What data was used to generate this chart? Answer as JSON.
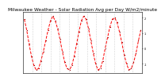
{
  "title": "Milwaukee Weather - Solar Radiation Avg per Day W/m2/minute",
  "title_fontsize": 4.2,
  "line_color": "#ff0000",
  "line_style": "--",
  "line_width": 0.7,
  "marker": "s",
  "marker_size": 0.6,
  "marker_color": "#880000",
  "background_color": "#ffffff",
  "grid_color": "#999999",
  "ylim": [
    -1.6,
    2.4
  ],
  "tick_fontsize": 2.5,
  "y_values": [
    1.9,
    1.2,
    0.3,
    -0.5,
    -1.1,
    -1.4,
    -1.3,
    -0.8,
    -0.2,
    0.5,
    1.2,
    1.8,
    2.1,
    1.8,
    1.3,
    0.6,
    -0.2,
    -0.9,
    -1.3,
    -1.4,
    -1.1,
    -0.5,
    0.3,
    1.1,
    1.8,
    2.1,
    1.9,
    1.3,
    0.5,
    -0.3,
    -1.0,
    -1.4,
    -1.3,
    -0.8,
    0.0,
    0.7,
    1.4,
    1.9,
    2.0,
    1.7,
    1.1,
    0.4,
    -0.4,
    -1.0,
    -1.4,
    -1.3,
    -0.9,
    -0.3,
    0.5,
    1.2
  ],
  "x_values": [
    0,
    1,
    2,
    3,
    4,
    5,
    6,
    7,
    8,
    9,
    10,
    11,
    12,
    13,
    14,
    15,
    16,
    17,
    18,
    19,
    20,
    21,
    22,
    23,
    24,
    25,
    26,
    27,
    28,
    29,
    30,
    31,
    32,
    33,
    34,
    35,
    36,
    37,
    38,
    39,
    40,
    41,
    42,
    43,
    44,
    45,
    46,
    47,
    48,
    49
  ],
  "y_tick_positions": [
    2.0,
    1.0,
    0.0,
    -1.0
  ],
  "y_tick_labels": [
    "2",
    "1",
    "0",
    "-1"
  ],
  "x_tick_count": 13,
  "right_axis": true
}
